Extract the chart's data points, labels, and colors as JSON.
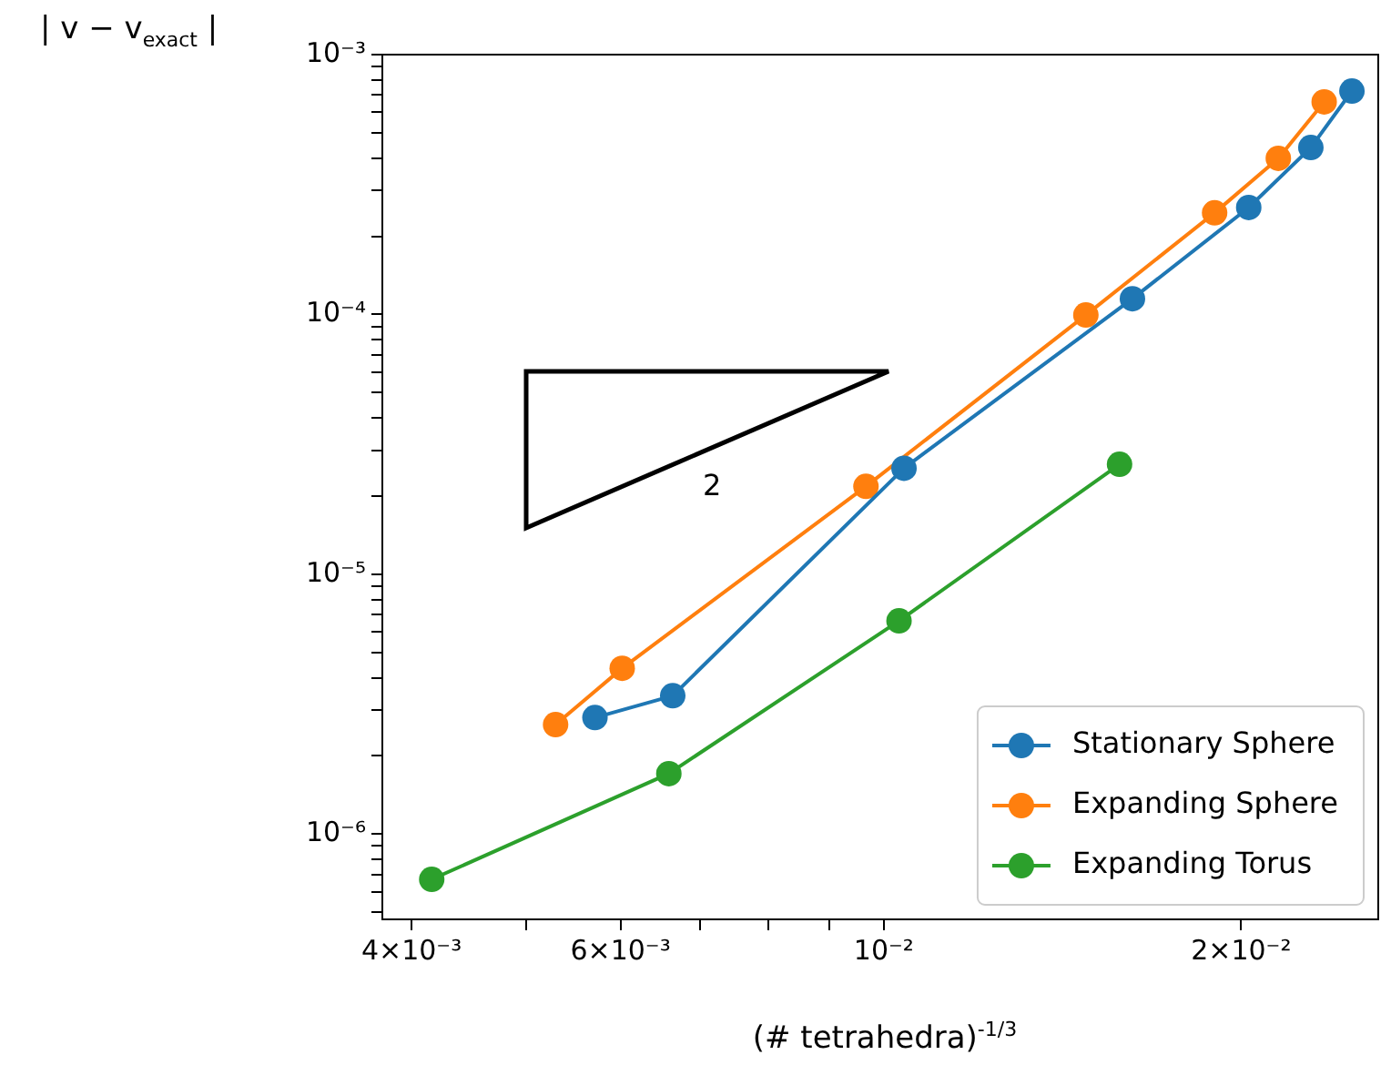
{
  "chart_data": {
    "type": "line",
    "xlabel": "(# tetrahedra)$^{-1/3}$",
    "ylabel": "| v − v$_{exact}$ |",
    "log": "xy",
    "grid": false,
    "legend": "lower right",
    "marker": "circle",
    "line_style": "solid",
    "xlim": [
      0.00378,
      0.0261
    ],
    "ylim": [
      4.7e-07,
      0.001
    ],
    "xticks": [
      {
        "value": 0.004,
        "label": "4×10⁻³"
      },
      {
        "value": 0.005,
        "label": null
      },
      {
        "value": 0.006,
        "label": "6×10⁻³"
      },
      {
        "value": 0.007,
        "label": null
      },
      {
        "value": 0.008,
        "label": null
      },
      {
        "value": 0.009,
        "label": null
      },
      {
        "value": 0.01,
        "label": "10⁻²"
      },
      {
        "value": 0.02,
        "label": "2×10⁻²"
      }
    ],
    "yticks": [
      {
        "value": 5e-07,
        "label": null
      },
      {
        "value": 6e-07,
        "label": null
      },
      {
        "value": 7e-07,
        "label": null
      },
      {
        "value": 8e-07,
        "label": null
      },
      {
        "value": 9e-07,
        "label": null
      },
      {
        "value": 1e-06,
        "label": "10⁻⁶"
      },
      {
        "value": 2e-06,
        "label": null
      },
      {
        "value": 3e-06,
        "label": null
      },
      {
        "value": 4e-06,
        "label": null
      },
      {
        "value": 5e-06,
        "label": null
      },
      {
        "value": 6e-06,
        "label": null
      },
      {
        "value": 7e-06,
        "label": null
      },
      {
        "value": 8e-06,
        "label": null
      },
      {
        "value": 9e-06,
        "label": null
      },
      {
        "value": 1e-05,
        "label": "10⁻⁵"
      },
      {
        "value": 2e-05,
        "label": null
      },
      {
        "value": 3e-05,
        "label": null
      },
      {
        "value": 4e-05,
        "label": null
      },
      {
        "value": 5e-05,
        "label": null
      },
      {
        "value": 6e-05,
        "label": null
      },
      {
        "value": 7e-05,
        "label": null
      },
      {
        "value": 8e-05,
        "label": null
      },
      {
        "value": 9e-05,
        "label": null
      },
      {
        "value": 0.0001,
        "label": "10⁻⁴"
      },
      {
        "value": 0.0002,
        "label": null
      },
      {
        "value": 0.0003,
        "label": null
      },
      {
        "value": 0.0004,
        "label": null
      },
      {
        "value": 0.0005,
        "label": null
      },
      {
        "value": 0.0006,
        "label": null
      },
      {
        "value": 0.0007,
        "label": null
      },
      {
        "value": 0.0008,
        "label": null
      },
      {
        "value": 0.0009,
        "label": null
      },
      {
        "value": 0.001,
        "label": "10⁻³"
      }
    ],
    "series": [
      {
        "name": "Stationary Sphere",
        "color": "#1f77b4",
        "x": [
          0.00571,
          0.00664,
          0.0104,
          0.0162,
          0.0203,
          0.0229,
          0.0248
        ],
        "values": [
          2.81e-06,
          3.41e-06,
          2.56e-05,
          0.000115,
          0.000258,
          0.000439,
          0.000724
        ]
      },
      {
        "name": "Expanding Sphere",
        "color": "#ff7f0e",
        "x": [
          0.00529,
          0.00602,
          0.00966,
          0.0148,
          0.019,
          0.0215,
          0.0235
        ],
        "values": [
          2.64e-06,
          4.35e-06,
          2.18e-05,
          9.95e-05,
          0.000246,
          0.000399,
          0.000658
        ]
      },
      {
        "name": "Expanding Torus",
        "color": "#2ca02c",
        "x": [
          0.00416,
          0.00659,
          0.0103,
          0.0158
        ],
        "values": [
          6.7e-07,
          1.71e-06,
          6.62e-06,
          2.65e-05
        ]
      }
    ],
    "annotations": [
      "2"
    ]
  }
}
